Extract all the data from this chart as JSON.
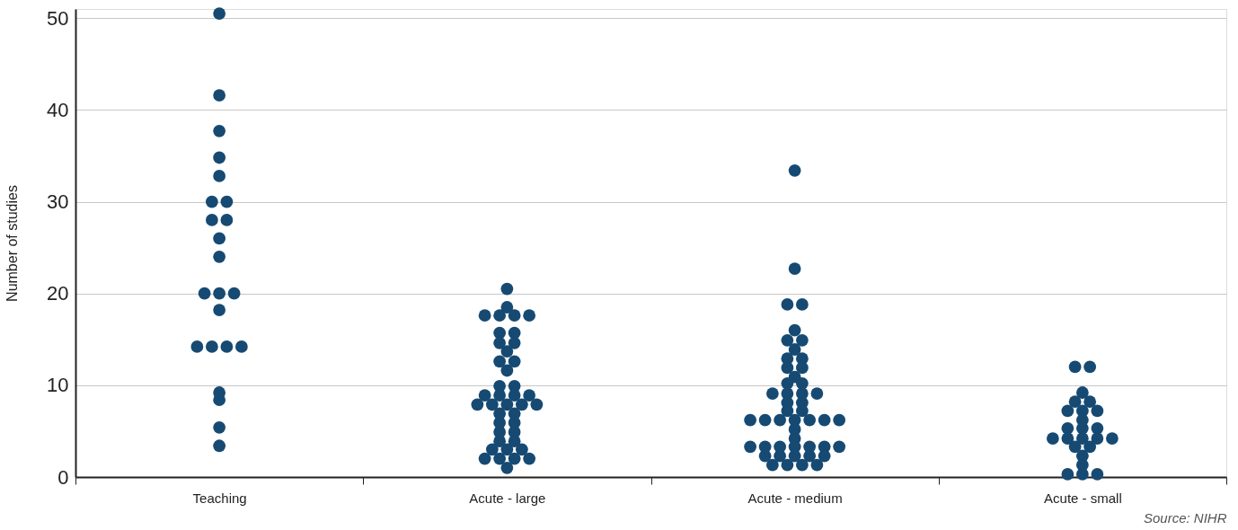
{
  "chart_data": {
    "type": "scatter",
    "ylabel": "Number of studies",
    "annotations": [
      "Source: NIHR"
    ],
    "categories": [
      "Teaching",
      "Acute - large",
      "Acute - medium",
      "Acute - small"
    ],
    "series": [
      {
        "color": "#164a73",
        "x": [
          "Teaching",
          "Teaching",
          "Teaching",
          "Teaching",
          "Teaching",
          "Teaching",
          "Teaching",
          "Teaching",
          "Teaching",
          "Teaching",
          "Teaching",
          "Teaching",
          "Teaching",
          "Teaching",
          "Teaching",
          "Teaching",
          "Teaching",
          "Teaching",
          "Teaching",
          "Teaching",
          "Teaching",
          "Teaching",
          "Teaching",
          "Acute - large",
          "Acute - large",
          "Acute - large",
          "Acute - large",
          "Acute - large",
          "Acute - large",
          "Acute - large",
          "Acute - large",
          "Acute - large",
          "Acute - large",
          "Acute - large",
          "Acute - large",
          "Acute - large",
          "Acute - large",
          "Acute - large",
          "Acute - large",
          "Acute - large",
          "Acute - large",
          "Acute - large",
          "Acute - large",
          "Acute - large",
          "Acute - large",
          "Acute - large",
          "Acute - large",
          "Acute - large",
          "Acute - large",
          "Acute - large",
          "Acute - large",
          "Acute - large",
          "Acute - large",
          "Acute - large",
          "Acute - large",
          "Acute - large",
          "Acute - large",
          "Acute - large",
          "Acute - large",
          "Acute - large",
          "Acute - large",
          "Acute - large",
          "Acute - large",
          "Acute - large",
          "Acute - medium",
          "Acute - medium",
          "Acute - medium",
          "Acute - medium",
          "Acute - medium",
          "Acute - medium",
          "Acute - medium",
          "Acute - medium",
          "Acute - medium",
          "Acute - medium",
          "Acute - medium",
          "Acute - medium",
          "Acute - medium",
          "Acute - medium",
          "Acute - medium",
          "Acute - medium",
          "Acute - medium",
          "Acute - medium",
          "Acute - medium",
          "Acute - medium",
          "Acute - medium",
          "Acute - medium",
          "Acute - medium",
          "Acute - medium",
          "Acute - medium",
          "Acute - medium",
          "Acute - medium",
          "Acute - medium",
          "Acute - medium",
          "Acute - medium",
          "Acute - medium",
          "Acute - medium",
          "Acute - medium",
          "Acute - medium",
          "Acute - medium",
          "Acute - medium",
          "Acute - medium",
          "Acute - medium",
          "Acute - medium",
          "Acute - medium",
          "Acute - medium",
          "Acute - medium",
          "Acute - medium",
          "Acute - medium",
          "Acute - medium",
          "Acute - medium",
          "Acute - medium",
          "Acute - medium",
          "Acute - small",
          "Acute - small",
          "Acute - small",
          "Acute - small",
          "Acute - small",
          "Acute - small",
          "Acute - small",
          "Acute - small",
          "Acute - small",
          "Acute - small",
          "Acute - small",
          "Acute - small",
          "Acute - small",
          "Acute - small",
          "Acute - small",
          "Acute - small",
          "Acute - small",
          "Acute - small",
          "Acute - small",
          "Acute - small",
          "Acute - small",
          "Acute - small",
          "Acute - small",
          "Acute - small"
        ],
        "values": [
          50.5,
          41.6,
          37.7,
          34.8,
          32.8,
          30,
          30,
          28,
          28,
          26,
          24,
          20,
          20,
          20,
          18.2,
          14.2,
          14.2,
          14.2,
          14.2,
          9.2,
          8.4,
          5.4,
          3.4,
          20.5,
          18.5,
          17.6,
          17.6,
          17.6,
          17.6,
          15.7,
          15.7,
          14.6,
          14.6,
          13.7,
          12.6,
          12.6,
          11.6,
          9.9,
          9.9,
          8.9,
          8.9,
          8.9,
          8.9,
          7.9,
          7.9,
          7.9,
          7.9,
          7.9,
          6.9,
          6.9,
          5.9,
          5.9,
          4.9,
          4.9,
          3.9,
          3.9,
          3.0,
          3.0,
          3.0,
          2.0,
          2.0,
          2.0,
          2.0,
          1.0,
          33.4,
          22.7,
          18.8,
          18.8,
          16.0,
          14.9,
          14.9,
          13.9,
          12.9,
          12.9,
          11.9,
          11.9,
          10.9,
          10.2,
          10.2,
          9.1,
          9.1,
          9.1,
          9.1,
          8.1,
          8.1,
          7.2,
          7.2,
          6.2,
          6.2,
          6.2,
          6.2,
          6.2,
          6.2,
          6.2,
          5.2,
          4.2,
          3.3,
          3.3,
          3.3,
          3.3,
          3.3,
          3.3,
          3.3,
          2.3,
          2.3,
          2.3,
          2.3,
          2.3,
          1.3,
          1.3,
          1.3,
          1.3,
          12.0,
          12.0,
          9.2,
          8.2,
          8.2,
          7.2,
          7.2,
          7.2,
          6.2,
          5.3,
          5.3,
          5.3,
          4.2,
          4.2,
          4.2,
          4.2,
          4.2,
          3.3,
          3.3,
          2.3,
          1.3,
          0.3,
          0.3,
          0.3
        ]
      }
    ],
    "ylim": [
      0,
      51
    ],
    "yticks": [
      0,
      10,
      20,
      30,
      40,
      50
    ],
    "grid": "y",
    "marker": "circle",
    "legend": false
  }
}
